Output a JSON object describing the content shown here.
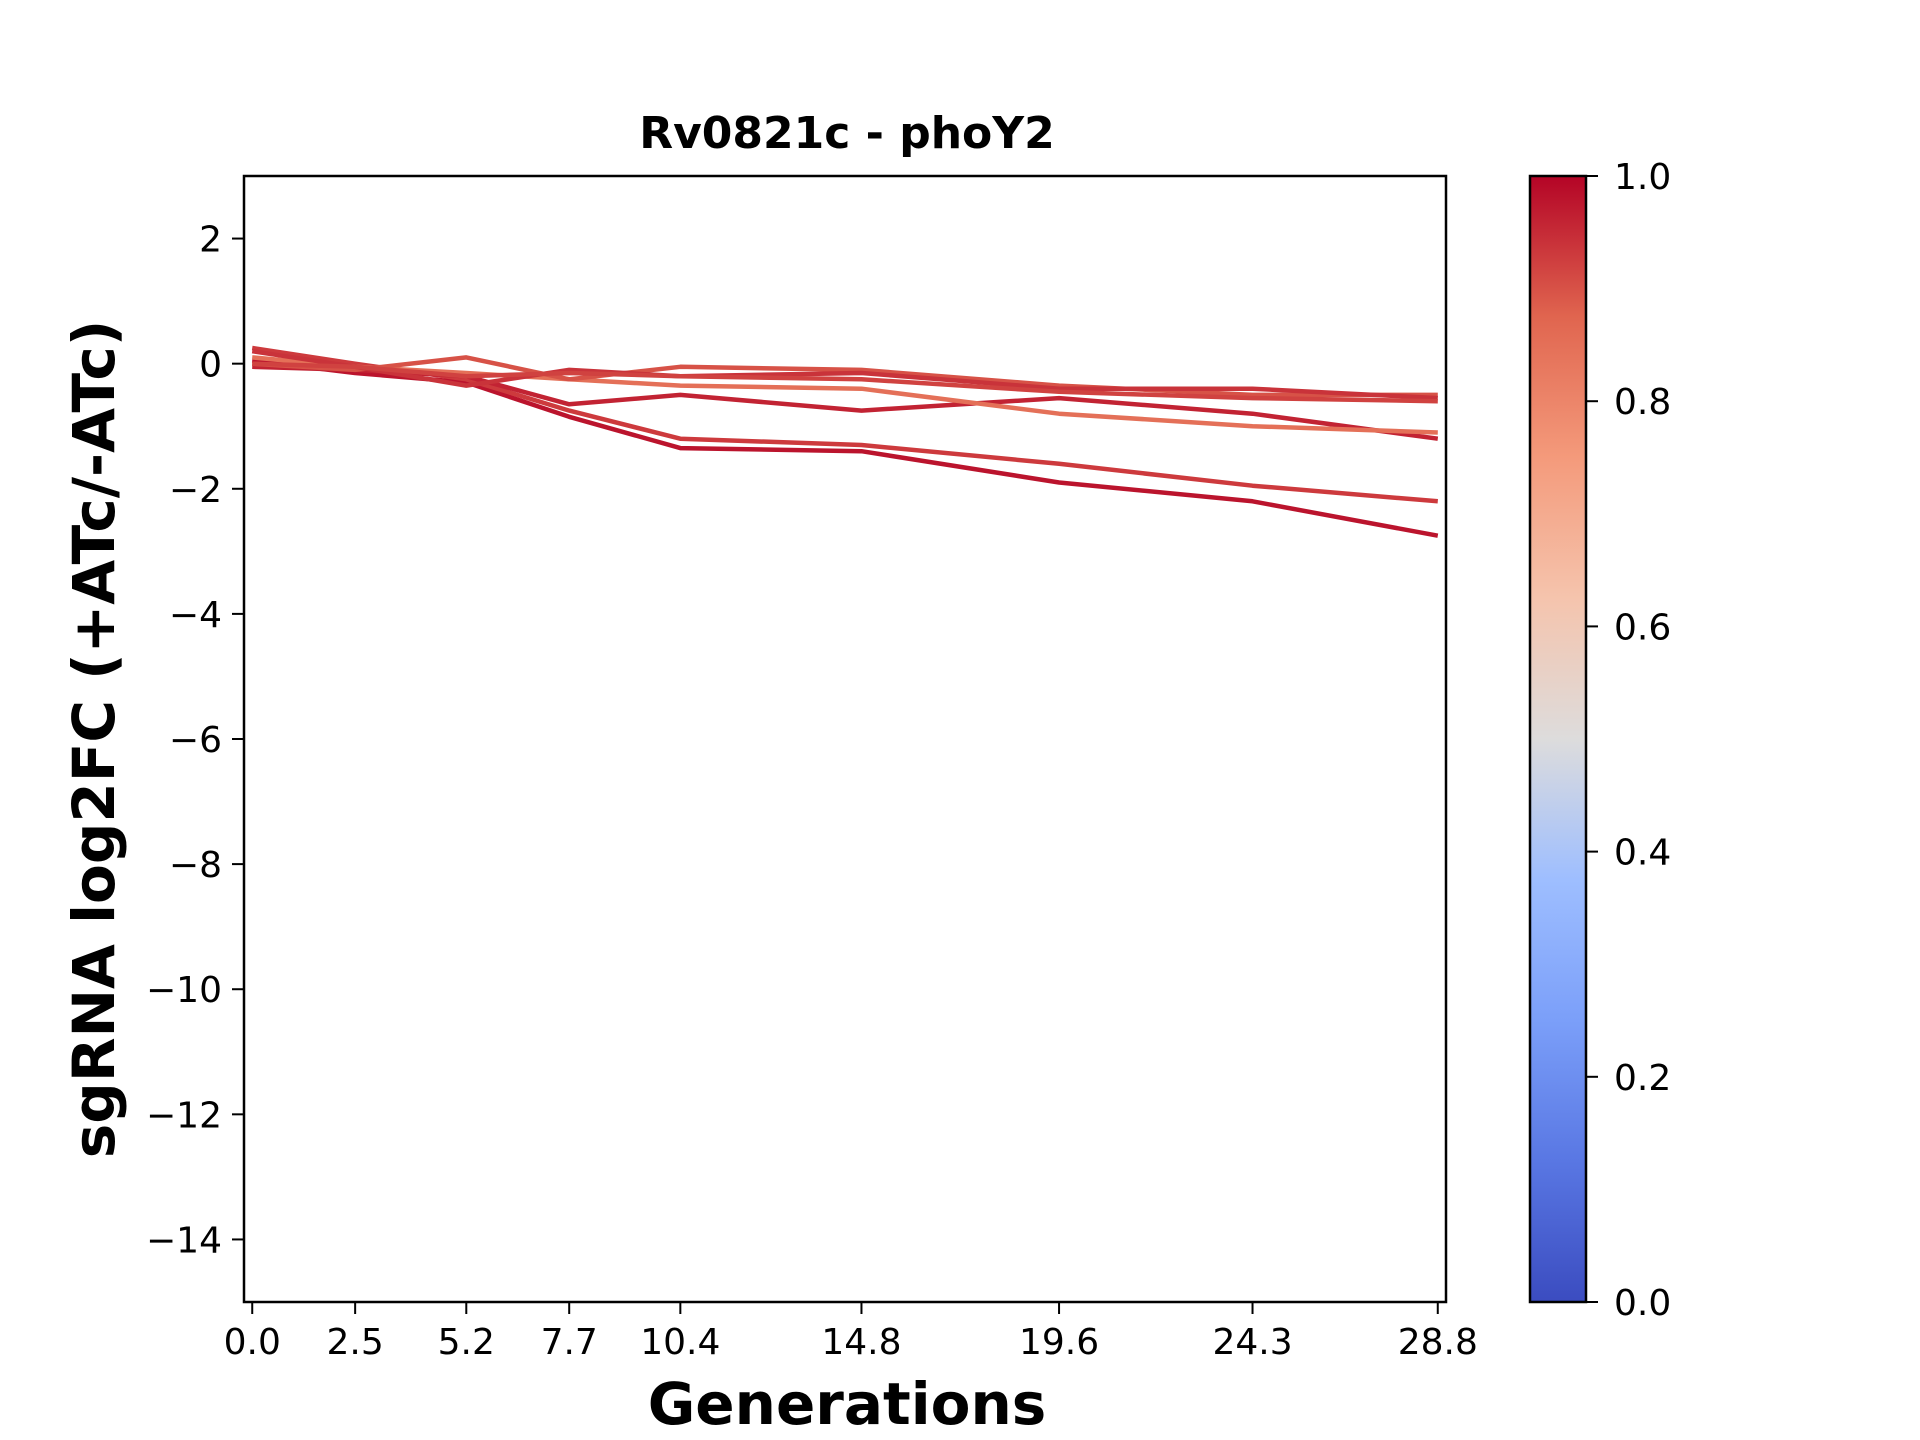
{
  "chart_data": {
    "type": "line",
    "title": "Rv0821c - phoY2",
    "xlabel": "Generations",
    "ylabel": "sgRNA log2FC (+ATc/-ATc)",
    "xlim": [
      -0.2,
      29.0
    ],
    "ylim": [
      -15,
      3
    ],
    "x_ticks": [
      0.0,
      2.5,
      5.2,
      7.7,
      10.4,
      14.8,
      19.6,
      24.3,
      28.8
    ],
    "x_tick_labels": [
      "0.0",
      "2.5",
      "5.2",
      "7.7",
      "10.4",
      "14.8",
      "19.6",
      "24.3",
      "28.8"
    ],
    "y_ticks": [
      2,
      0,
      -2,
      -4,
      -6,
      -8,
      -10,
      -12,
      -14
    ],
    "y_tick_labels": [
      "2",
      "0",
      "−2",
      "−4",
      "−6",
      "−8",
      "−10",
      "−12",
      "−14"
    ],
    "grid": false,
    "colormap": "coolwarm",
    "colorbar": {
      "range": [
        0.0,
        1.0
      ],
      "ticks": [
        0.0,
        0.2,
        0.4,
        0.6,
        0.8,
        1.0
      ],
      "tick_labels": [
        "0.0",
        "0.2",
        "0.4",
        "0.6",
        "0.8",
        "1.0"
      ]
    },
    "series": [
      {
        "color_value": 0.98,
        "x": [
          0.0,
          2.5,
          5.2,
          7.7,
          10.4,
          14.8,
          19.6,
          24.3,
          28.8
        ],
        "y": [
          0.05,
          -0.15,
          -0.3,
          -0.85,
          -1.35,
          -1.4,
          -1.9,
          -2.2,
          -2.75
        ]
      },
      {
        "color_value": 0.93,
        "x": [
          0.0,
          2.5,
          5.2,
          7.7,
          10.4,
          14.8,
          19.6,
          24.3,
          28.8
        ],
        "y": [
          0.25,
          0.0,
          -0.25,
          -0.75,
          -1.2,
          -1.3,
          -1.6,
          -1.95,
          -2.2
        ]
      },
      {
        "color_value": 0.96,
        "x": [
          0.0,
          2.5,
          5.2,
          7.7,
          10.4,
          14.8,
          19.6,
          24.3,
          28.8
        ],
        "y": [
          -0.05,
          -0.1,
          -0.2,
          -0.65,
          -0.5,
          -0.75,
          -0.55,
          -0.8,
          -1.2
        ]
      },
      {
        "color_value": 0.85,
        "x": [
          0.0,
          2.5,
          5.2,
          7.7,
          10.4,
          14.8,
          19.6,
          24.3,
          28.8
        ],
        "y": [
          0.1,
          -0.05,
          -0.15,
          -0.25,
          -0.35,
          -0.4,
          -0.8,
          -1.0,
          -1.1
        ]
      },
      {
        "color_value": 0.9,
        "x": [
          0.0,
          2.5,
          5.2,
          7.7,
          10.4,
          14.8,
          19.6,
          24.3,
          28.8
        ],
        "y": [
          0.0,
          -0.1,
          0.1,
          -0.25,
          -0.05,
          -0.1,
          -0.35,
          -0.5,
          -0.5
        ]
      },
      {
        "color_value": 0.94,
        "x": [
          0.0,
          2.5,
          5.2,
          7.7,
          10.4,
          14.8,
          19.6,
          24.3,
          28.8
        ],
        "y": [
          0.2,
          -0.05,
          -0.35,
          -0.1,
          -0.2,
          -0.15,
          -0.4,
          -0.4,
          -0.55
        ]
      },
      {
        "color_value": 0.92,
        "x": [
          0.0,
          2.5,
          5.2,
          7.7,
          10.4,
          14.8,
          19.6,
          24.3,
          28.8
        ],
        "y": [
          0.0,
          -0.05,
          -0.2,
          -0.15,
          -0.2,
          -0.25,
          -0.45,
          -0.55,
          -0.6
        ]
      }
    ]
  }
}
